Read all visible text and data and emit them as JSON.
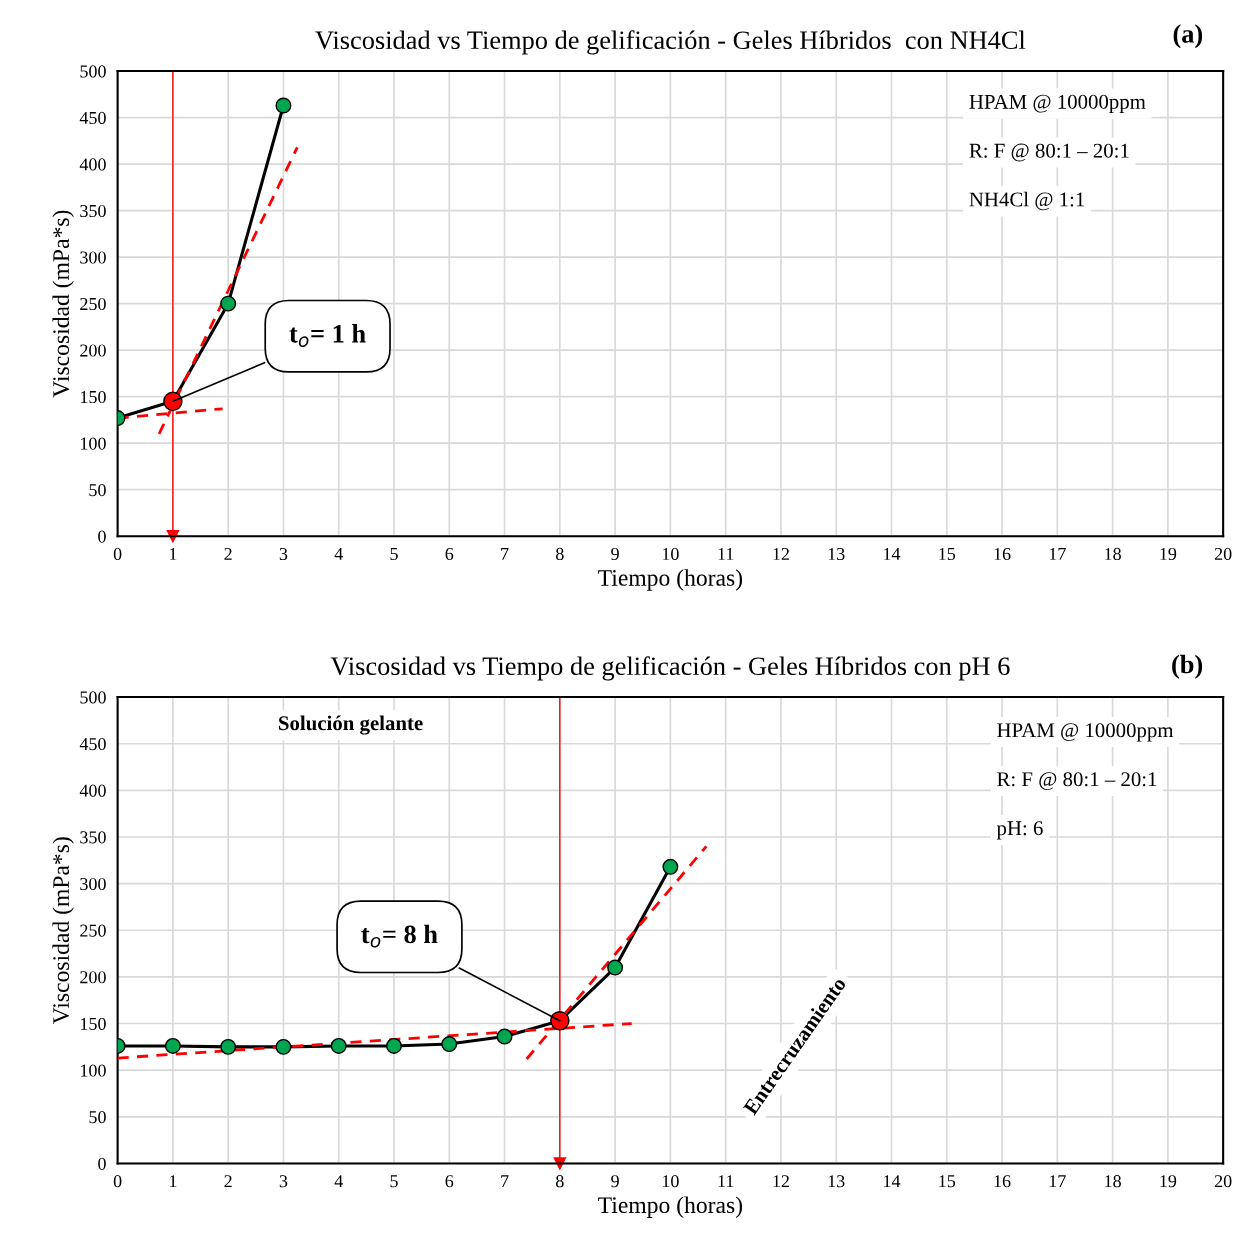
{
  "chart_data": [
    {
      "type": "line",
      "title": "Viscosidad vs Tiempo de gelificación - Geles Híbridos  con NH4Cl",
      "xlabel": "Tiempo (horas)",
      "ylabel": "Viscosidad (mPa*s)",
      "xlim": [
        0,
        20
      ],
      "ylim": [
        0,
        500
      ],
      "xticks": [
        0,
        1,
        2,
        3,
        4,
        5,
        6,
        7,
        8,
        9,
        10,
        11,
        12,
        13,
        14,
        15,
        16,
        17,
        18,
        19,
        20
      ],
      "yticks": [
        0,
        50,
        100,
        150,
        200,
        250,
        300,
        350,
        400,
        450,
        500
      ],
      "grid": true,
      "legend": false,
      "series": [
        {
          "color": "#000000",
          "x": [
            0,
            1,
            2,
            3
          ],
          "values": [
            127,
            145,
            250,
            463
          ],
          "marker": "none",
          "line_style": "solid"
        },
        {
          "color": "#ff0000",
          "x": [
            0,
            1.9
          ],
          "values": [
            127,
            137
          ],
          "marker": "none",
          "line_style": "dashed"
        },
        {
          "color": "#ff0000",
          "x": [
            0.75,
            3.25
          ],
          "values": [
            110,
            418
          ],
          "marker": "none",
          "line_style": "dashed"
        },
        {
          "type": "scatter",
          "color": "#00a650",
          "x": [
            0,
            2,
            3
          ],
          "values": [
            127,
            250,
            463
          ],
          "marker": "circle"
        },
        {
          "type": "scatter",
          "color": "#ff0000",
          "x": [
            1
          ],
          "values": [
            145
          ],
          "marker": "circle"
        }
      ],
      "ref_lines": [
        {
          "axis": "x",
          "value": 1,
          "color": "#ff0000"
        }
      ],
      "annotations": [
        "(a)",
        "HPAM @ 10000ppm",
        "R: F @ 80:1 – 20:1",
        "NH4Cl @ 1:1",
        {
          "text": "t$_{o}$= 1 h",
          "x": 1,
          "y": 145
        }
      ]
    },
    {
      "type": "line",
      "title": "Viscosidad vs Tiempo de gelificación - Geles Híbridos con pH 6",
      "xlabel": "Tiempo (horas)",
      "ylabel": "Viscosidad (mPa*s)",
      "xlim": [
        0,
        20
      ],
      "ylim": [
        0,
        500
      ],
      "xticks": [
        0,
        1,
        2,
        3,
        4,
        5,
        6,
        7,
        8,
        9,
        10,
        11,
        12,
        13,
        14,
        15,
        16,
        17,
        18,
        19,
        20
      ],
      "yticks": [
        0,
        50,
        100,
        150,
        200,
        250,
        300,
        350,
        400,
        450,
        500
      ],
      "grid": true,
      "legend": false,
      "series": [
        {
          "color": "#000000",
          "x": [
            0,
            1,
            2,
            3,
            4,
            5,
            6,
            7,
            8,
            9,
            10
          ],
          "values": [
            126,
            126,
            125,
            125,
            126,
            126,
            128,
            136,
            153,
            210,
            318
          ],
          "marker": "none",
          "line_style": "solid"
        },
        {
          "color": "#ff0000",
          "x": [
            0,
            9.3
          ],
          "values": [
            113,
            150
          ],
          "marker": "none",
          "line_style": "dashed"
        },
        {
          "color": "#ff0000",
          "x": [
            7.4,
            10.65
          ],
          "values": [
            112,
            340
          ],
          "marker": "none",
          "line_style": "dashed"
        },
        {
          "type": "scatter",
          "color": "#00a650",
          "x": [
            0,
            1,
            2,
            3,
            4,
            5,
            6,
            7,
            9,
            10
          ],
          "values": [
            126,
            126,
            125,
            125,
            126,
            126,
            128,
            136,
            210,
            318
          ],
          "marker": "circle"
        },
        {
          "type": "scatter",
          "color": "#ff0000",
          "x": [
            8
          ],
          "values": [
            153
          ],
          "marker": "circle"
        }
      ],
      "ref_lines": [
        {
          "axis": "x",
          "value": 8,
          "color": "#ff0000"
        }
      ],
      "annotations": [
        "(b)",
        "HPAM @ 10000ppm",
        "R: F @ 80:1 – 20:1",
        "pH: 6",
        "Solución gelante",
        "Entrecruzamiento",
        {
          "text": "t$_{o}$= 8 h",
          "x": 8,
          "y": 153
        }
      ]
    }
  ]
}
